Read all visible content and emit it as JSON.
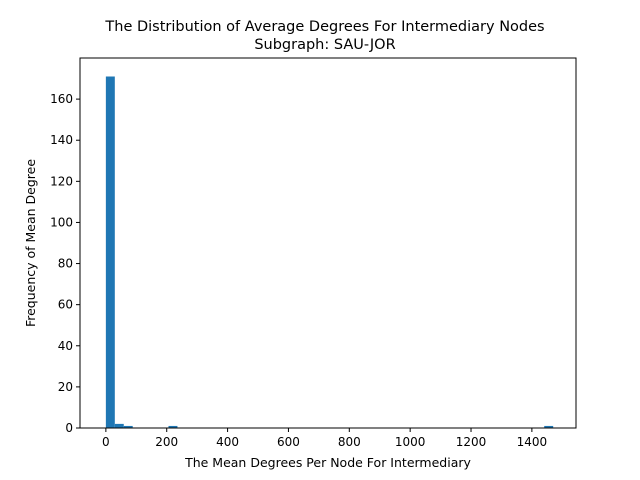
{
  "chart_data": {
    "type": "bar",
    "title": "The Distribution of Average Degrees For Intermediary Nodes",
    "subtitle": "Subgraph: SAU-JOR",
    "xlabel": "The Mean Degrees Per Node For Intermediary",
    "ylabel": "Frequency of Mean Degree",
    "xlim": [
      -85,
      1545
    ],
    "ylim": [
      0,
      180
    ],
    "xticks": [
      0,
      200,
      400,
      600,
      800,
      1000,
      1200,
      1400
    ],
    "yticks": [
      0,
      20,
      40,
      60,
      80,
      100,
      120,
      140,
      160
    ],
    "grid": false,
    "bar_color": "#1f77b4",
    "bin_width": 29.4,
    "bins": [
      {
        "start": 0,
        "count": 171
      },
      {
        "start": 29.4,
        "count": 2
      },
      {
        "start": 58.8,
        "count": 1
      },
      {
        "start": 205.8,
        "count": 1
      },
      {
        "start": 1440.6,
        "count": 1
      }
    ]
  }
}
